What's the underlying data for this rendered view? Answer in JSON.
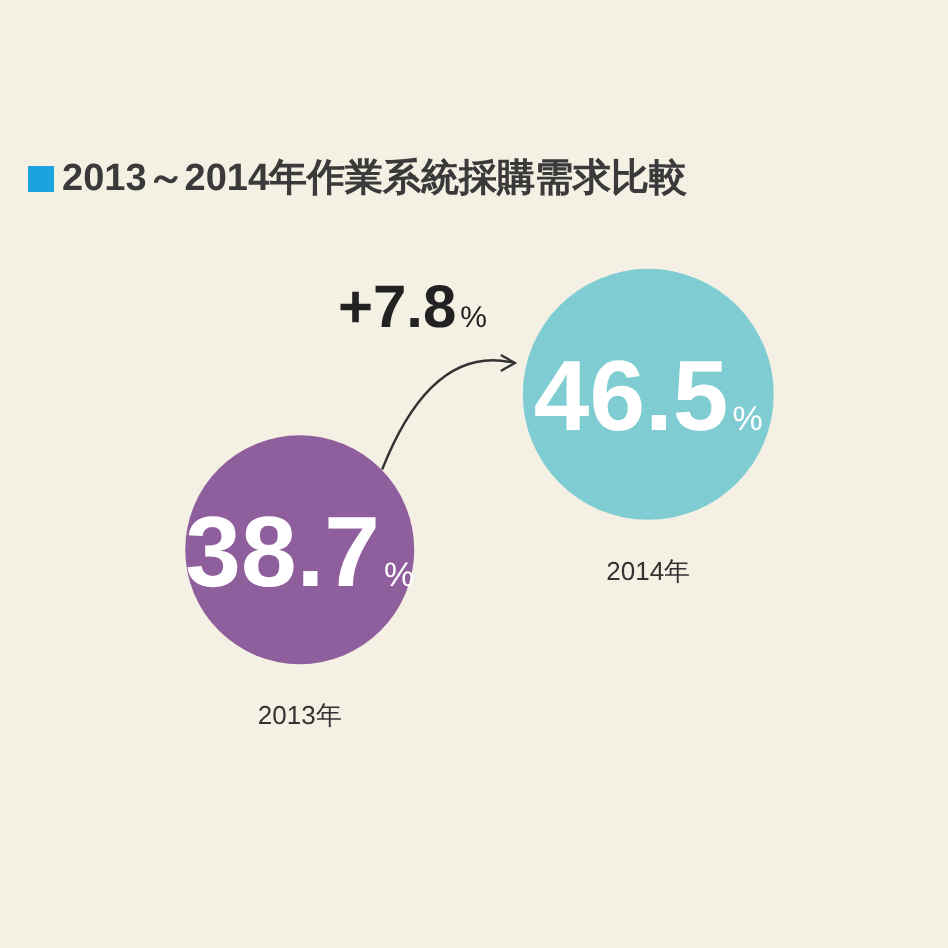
{
  "chart_data": {
    "type": "other",
    "title": "2013～2014年作業系統採購需求比較",
    "categories": [
      "2013年",
      "2014年"
    ],
    "values": [
      38.7,
      46.5
    ],
    "colors": [
      "#8f5e9c",
      "#7fcdd2"
    ],
    "value_labels": [
      "38.7%",
      "46.5%"
    ],
    "annotations": [
      "+7.8%"
    ]
  }
}
